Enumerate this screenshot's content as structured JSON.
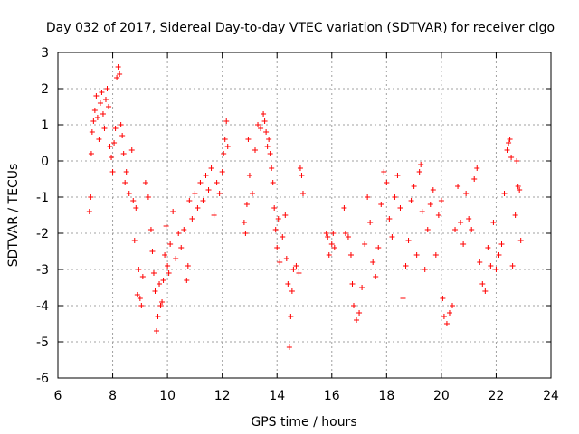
{
  "chart_data": {
    "type": "scatter",
    "title": "Day 032 of 2017, Sidereal Day-to-day VTEC variation (SDTVAR) for receiver clgo",
    "xlabel": "GPS time / hours",
    "ylabel": "SDTVAR / TECUs",
    "xlim": [
      6,
      24
    ],
    "ylim": [
      -6,
      3
    ],
    "xticks": [
      6,
      8,
      10,
      12,
      14,
      16,
      18,
      20,
      22,
      24
    ],
    "yticks": [
      -6,
      -5,
      -4,
      -3,
      -2,
      -1,
      0,
      1,
      2,
      3
    ],
    "grid": true,
    "marker": "+",
    "color": "#ff0000",
    "series": [
      {
        "name": "SDTVAR",
        "points": [
          [
            7.15,
            -1.4
          ],
          [
            7.2,
            -1.0
          ],
          [
            7.22,
            0.2
          ],
          [
            7.25,
            0.8
          ],
          [
            7.3,
            1.1
          ],
          [
            7.35,
            1.4
          ],
          [
            7.4,
            1.8
          ],
          [
            7.45,
            1.2
          ],
          [
            7.5,
            0.6
          ],
          [
            7.55,
            1.6
          ],
          [
            7.6,
            1.9
          ],
          [
            7.65,
            1.3
          ],
          [
            7.7,
            0.9
          ],
          [
            7.75,
            1.7
          ],
          [
            7.8,
            2.0
          ],
          [
            7.85,
            1.5
          ],
          [
            7.9,
            0.4
          ],
          [
            7.95,
            0.1
          ],
          [
            8.0,
            -0.3
          ],
          [
            8.05,
            0.5
          ],
          [
            8.1,
            0.9
          ],
          [
            8.15,
            2.3
          ],
          [
            8.2,
            2.6
          ],
          [
            8.25,
            2.4
          ],
          [
            8.3,
            1.0
          ],
          [
            8.35,
            0.7
          ],
          [
            8.4,
            0.2
          ],
          [
            8.45,
            -0.6
          ],
          [
            8.5,
            -0.3
          ],
          [
            8.6,
            -0.9
          ],
          [
            8.7,
            0.3
          ],
          [
            8.75,
            -1.1
          ],
          [
            8.8,
            -2.2
          ],
          [
            8.85,
            -1.3
          ],
          [
            8.9,
            -3.7
          ],
          [
            8.95,
            -3.0
          ],
          [
            9.0,
            -3.8
          ],
          [
            9.05,
            -4.0
          ],
          [
            9.1,
            -3.2
          ],
          [
            9.2,
            -0.6
          ],
          [
            9.3,
            -1.0
          ],
          [
            9.4,
            -1.9
          ],
          [
            9.45,
            -2.5
          ],
          [
            9.5,
            -3.1
          ],
          [
            9.55,
            -3.6
          ],
          [
            9.6,
            -4.7
          ],
          [
            9.65,
            -4.3
          ],
          [
            9.7,
            -3.4
          ],
          [
            9.75,
            -4.0
          ],
          [
            9.8,
            -3.9
          ],
          [
            9.85,
            -3.3
          ],
          [
            9.9,
            -2.6
          ],
          [
            9.95,
            -1.8
          ],
          [
            10.0,
            -2.9
          ],
          [
            10.05,
            -3.1
          ],
          [
            10.1,
            -2.3
          ],
          [
            10.2,
            -1.4
          ],
          [
            10.3,
            -2.7
          ],
          [
            10.4,
            -2.0
          ],
          [
            10.5,
            -2.4
          ],
          [
            10.6,
            -1.9
          ],
          [
            10.7,
            -3.3
          ],
          [
            10.75,
            -2.9
          ],
          [
            10.8,
            -1.1
          ],
          [
            10.9,
            -1.6
          ],
          [
            11.0,
            -0.9
          ],
          [
            11.1,
            -1.3
          ],
          [
            11.2,
            -0.6
          ],
          [
            11.3,
            -1.1
          ],
          [
            11.4,
            -0.4
          ],
          [
            11.5,
            -0.8
          ],
          [
            11.6,
            -0.2
          ],
          [
            11.7,
            -1.5
          ],
          [
            11.8,
            -0.6
          ],
          [
            11.9,
            -0.9
          ],
          [
            12.0,
            -0.3
          ],
          [
            12.05,
            0.2
          ],
          [
            12.1,
            0.6
          ],
          [
            12.15,
            1.1
          ],
          [
            12.2,
            0.4
          ],
          [
            12.8,
            -1.7
          ],
          [
            12.85,
            -2.0
          ],
          [
            12.9,
            -1.2
          ],
          [
            12.95,
            0.6
          ],
          [
            13.0,
            -0.4
          ],
          [
            13.1,
            -0.9
          ],
          [
            13.2,
            0.3
          ],
          [
            13.3,
            1.0
          ],
          [
            13.4,
            0.9
          ],
          [
            13.5,
            1.3
          ],
          [
            13.55,
            1.1
          ],
          [
            13.6,
            0.8
          ],
          [
            13.65,
            0.4
          ],
          [
            13.7,
            0.6
          ],
          [
            13.75,
            0.2
          ],
          [
            13.8,
            -0.2
          ],
          [
            13.85,
            -0.6
          ],
          [
            13.9,
            -1.3
          ],
          [
            13.95,
            -1.9
          ],
          [
            14.0,
            -2.4
          ],
          [
            14.05,
            -1.6
          ],
          [
            14.1,
            -2.8
          ],
          [
            14.2,
            -2.1
          ],
          [
            14.3,
            -1.5
          ],
          [
            14.35,
            -2.7
          ],
          [
            14.4,
            -3.4
          ],
          [
            14.45,
            -5.15
          ],
          [
            14.5,
            -4.3
          ],
          [
            14.55,
            -3.6
          ],
          [
            14.6,
            -3.0
          ],
          [
            14.7,
            -2.9
          ],
          [
            14.8,
            -3.1
          ],
          [
            14.85,
            -0.2
          ],
          [
            14.9,
            -0.4
          ],
          [
            14.95,
            -0.9
          ],
          [
            15.8,
            -2.0
          ],
          [
            15.85,
            -2.1
          ],
          [
            15.9,
            -2.6
          ],
          [
            16.0,
            -2.3
          ],
          [
            16.05,
            -2.0
          ],
          [
            16.1,
            -2.4
          ],
          [
            16.45,
            -1.3
          ],
          [
            16.5,
            -2.0
          ],
          [
            16.6,
            -2.1
          ],
          [
            16.7,
            -2.6
          ],
          [
            16.75,
            -3.4
          ],
          [
            16.8,
            -4.0
          ],
          [
            16.9,
            -4.4
          ],
          [
            17.0,
            -4.2
          ],
          [
            17.1,
            -3.5
          ],
          [
            17.2,
            -2.3
          ],
          [
            17.3,
            -1.0
          ],
          [
            17.4,
            -1.7
          ],
          [
            17.5,
            -2.8
          ],
          [
            17.6,
            -3.2
          ],
          [
            17.7,
            -2.4
          ],
          [
            17.8,
            -1.2
          ],
          [
            17.9,
            -0.3
          ],
          [
            18.0,
            -0.6
          ],
          [
            18.1,
            -1.6
          ],
          [
            18.2,
            -2.1
          ],
          [
            18.3,
            -1.0
          ],
          [
            18.4,
            -0.4
          ],
          [
            18.5,
            -1.3
          ],
          [
            18.6,
            -3.8
          ],
          [
            18.7,
            -2.9
          ],
          [
            18.8,
            -2.2
          ],
          [
            18.9,
            -1.1
          ],
          [
            19.0,
            -0.7
          ],
          [
            19.1,
            -2.6
          ],
          [
            19.2,
            -0.3
          ],
          [
            19.25,
            -0.1
          ],
          [
            19.3,
            -1.4
          ],
          [
            19.4,
            -3.0
          ],
          [
            19.5,
            -1.9
          ],
          [
            19.6,
            -1.2
          ],
          [
            19.7,
            -0.8
          ],
          [
            19.8,
            -2.6
          ],
          [
            19.9,
            -1.5
          ],
          [
            20.0,
            -1.1
          ],
          [
            20.05,
            -3.8
          ],
          [
            20.1,
            -4.3
          ],
          [
            20.2,
            -4.5
          ],
          [
            20.3,
            -4.2
          ],
          [
            20.4,
            -4.0
          ],
          [
            20.5,
            -1.9
          ],
          [
            20.6,
            -0.7
          ],
          [
            20.7,
            -1.7
          ],
          [
            20.8,
            -2.3
          ],
          [
            20.9,
            -0.9
          ],
          [
            21.0,
            -1.6
          ],
          [
            21.1,
            -1.9
          ],
          [
            21.2,
            -0.5
          ],
          [
            21.3,
            -0.2
          ],
          [
            21.4,
            -2.8
          ],
          [
            21.5,
            -3.4
          ],
          [
            21.6,
            -3.6
          ],
          [
            21.7,
            -2.4
          ],
          [
            21.8,
            -2.9
          ],
          [
            21.9,
            -1.7
          ],
          [
            22.0,
            -3.0
          ],
          [
            22.1,
            -2.6
          ],
          [
            22.2,
            -2.3
          ],
          [
            22.3,
            -0.9
          ],
          [
            22.4,
            0.3
          ],
          [
            22.45,
            0.5
          ],
          [
            22.5,
            0.6
          ],
          [
            22.55,
            0.1
          ],
          [
            22.6,
            -2.9
          ],
          [
            22.7,
            -1.5
          ],
          [
            22.75,
            0.0
          ],
          [
            22.8,
            -0.7
          ],
          [
            22.85,
            -0.8
          ],
          [
            22.9,
            -2.2
          ]
        ]
      }
    ]
  }
}
